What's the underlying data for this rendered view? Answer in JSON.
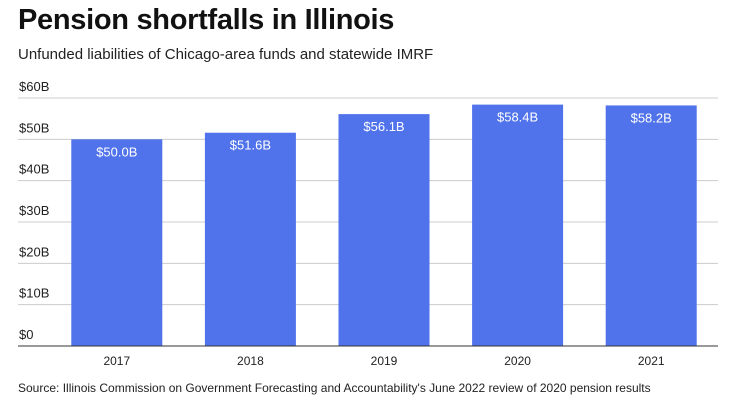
{
  "title": "Pension shortfalls in Illinois",
  "subtitle": "Unfunded liabilities of Chicago-area funds and statewide IMRF",
  "source": "Source: Illinois Commission on Government Forecasting and Accountability's June 2022 review of 2020 pension results",
  "colors": {
    "bar": "#5072ea",
    "grid": "#cccccc",
    "axis": "#333333",
    "bar_label": "#ffffff"
  },
  "chart_data": {
    "type": "bar",
    "categories": [
      "2017",
      "2018",
      "2019",
      "2020",
      "2021"
    ],
    "values": [
      50.0,
      51.6,
      56.1,
      58.4,
      58.2
    ],
    "data_labels": [
      "$50.0B",
      "$51.6B",
      "$56.1B",
      "$58.4B",
      "$58.2B"
    ],
    "ylim": [
      0,
      60
    ],
    "yticks": [
      0,
      10,
      20,
      30,
      40,
      50,
      60
    ],
    "ytick_labels": [
      "$0",
      "$10B",
      "$20B",
      "$30B",
      "$40B",
      "$50B",
      "$60B"
    ],
    "xlabel": "",
    "ylabel": "",
    "grid": true,
    "legend": "none"
  }
}
